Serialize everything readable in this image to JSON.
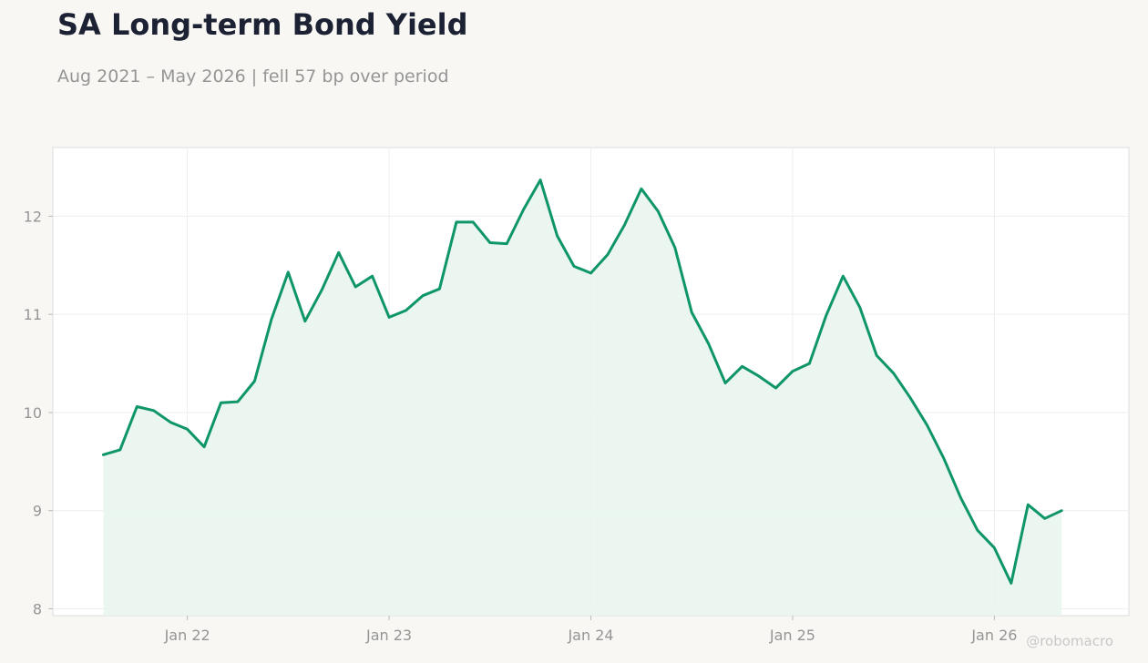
{
  "title": "SA Long-term Bond Yield",
  "subtitle": "Aug 2021 – May 2026 | fell 57 bp over period",
  "watermark": "@robomacro",
  "colors": {
    "line": "#0e9568",
    "fill": "#e8f4ef",
    "text": "#1c2233",
    "muted": "#959595",
    "background": "#f8f7f4",
    "plot_background": "#ffffff"
  },
  "chart_data": {
    "type": "area",
    "title": "SA Long-term Bond Yield",
    "subtitle": "Aug 2021 – May 2026 | fell 57 bp over period",
    "xlabel": "",
    "ylabel": "",
    "x_tick_labels": [
      "Jan 22",
      "Jan 23",
      "Jan 24",
      "Jan 25",
      "Jan 26"
    ],
    "y_ticks": [
      8,
      9,
      10,
      11,
      12
    ],
    "ylim": [
      7.93,
      12.7
    ],
    "xlim": [
      "2021-05",
      "2026-09"
    ],
    "grid": true,
    "legend": "none",
    "series": [
      {
        "x": [
          "2021-08",
          "2021-09",
          "2021-10",
          "2021-11",
          "2021-12",
          "2022-01",
          "2022-02",
          "2022-03",
          "2022-04",
          "2022-05",
          "2022-06",
          "2022-07",
          "2022-08",
          "2022-09",
          "2022-10",
          "2022-11",
          "2022-12",
          "2023-01",
          "2023-02",
          "2023-03",
          "2023-04",
          "2023-05",
          "2023-06",
          "2023-07",
          "2023-08",
          "2023-09",
          "2023-10",
          "2023-11",
          "2023-12",
          "2024-01",
          "2024-02",
          "2024-03",
          "2024-04",
          "2024-05",
          "2024-06",
          "2024-07",
          "2024-08",
          "2024-09",
          "2024-10",
          "2024-11",
          "2024-12",
          "2025-01",
          "2025-02",
          "2025-03",
          "2025-04",
          "2025-05",
          "2025-06",
          "2025-07",
          "2025-08",
          "2025-09",
          "2025-10",
          "2025-11",
          "2025-12",
          "2026-01",
          "2026-02",
          "2026-03",
          "2026-04",
          "2026-05"
        ],
        "values": [
          9.57,
          9.62,
          10.06,
          10.02,
          9.9,
          9.83,
          9.65,
          10.1,
          10.11,
          10.32,
          10.95,
          11.43,
          10.93,
          11.25,
          11.63,
          11.28,
          11.39,
          10.97,
          11.04,
          11.19,
          11.26,
          11.94,
          11.94,
          11.73,
          11.72,
          12.07,
          12.37,
          11.8,
          11.49,
          11.42,
          11.61,
          11.91,
          12.28,
          12.05,
          11.68,
          11.02,
          10.7,
          10.3,
          10.47,
          10.37,
          10.25,
          10.42,
          10.5,
          10.99,
          11.39,
          11.07,
          10.58,
          10.4,
          10.15,
          9.87,
          9.53,
          9.13,
          8.8,
          8.62,
          8.26,
          9.06,
          8.92,
          9.0
        ]
      }
    ]
  }
}
